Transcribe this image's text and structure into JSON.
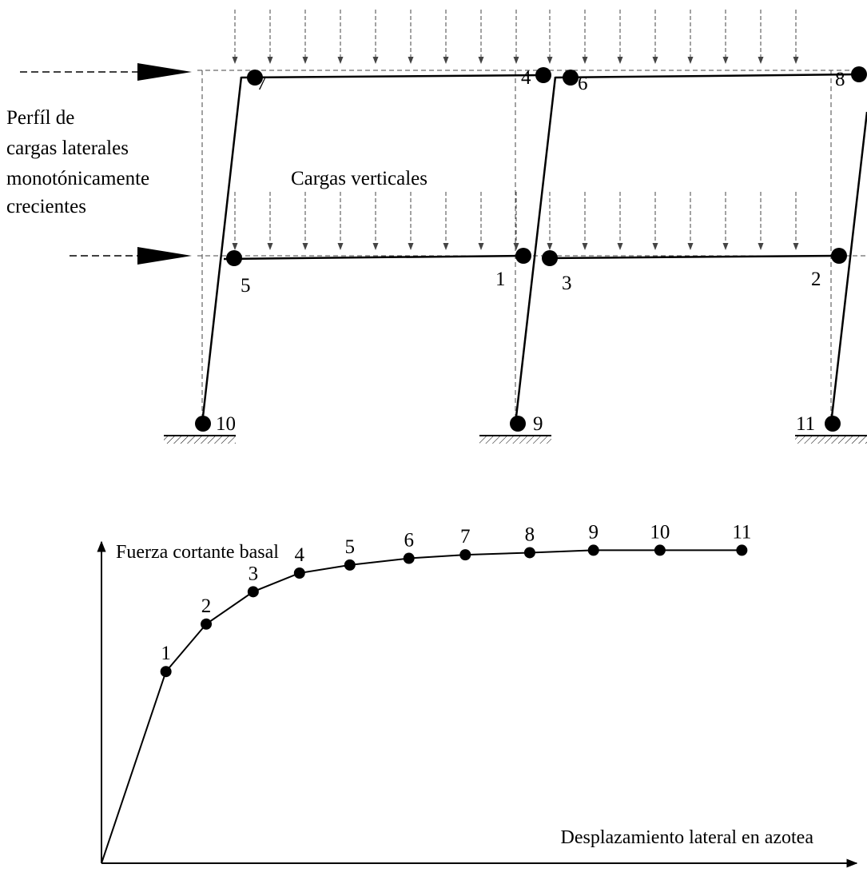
{
  "frame": {
    "lateral_load_label": [
      "Perfíl de",
      "cargas laterales",
      "monotónicamente",
      "crecientes"
    ],
    "vertical_load_label": "Cargas verticales",
    "hinge_labels": [
      "1",
      "2",
      "3",
      "4",
      "5",
      "6",
      "7",
      "8",
      "9",
      "10",
      "11"
    ]
  },
  "chart_data": {
    "type": "line",
    "xlabel": "Desplazamiento lateral en azotea",
    "ylabel": "Fuerza cortante basal",
    "xlim": [
      0,
      1
    ],
    "ylim": [
      0,
      1
    ],
    "points": [
      {
        "label": "",
        "x": 0.0,
        "y": 0.0
      },
      {
        "label": "1",
        "x": 0.096,
        "y": 0.545
      },
      {
        "label": "2",
        "x": 0.156,
        "y": 0.68
      },
      {
        "label": "3",
        "x": 0.226,
        "y": 0.772
      },
      {
        "label": "4",
        "x": 0.295,
        "y": 0.825
      },
      {
        "label": "5",
        "x": 0.37,
        "y": 0.848
      },
      {
        "label": "6",
        "x": 0.458,
        "y": 0.867
      },
      {
        "label": "7",
        "x": 0.542,
        "y": 0.877
      },
      {
        "label": "8",
        "x": 0.638,
        "y": 0.883
      },
      {
        "label": "9",
        "x": 0.733,
        "y": 0.89
      },
      {
        "label": "10",
        "x": 0.832,
        "y": 0.89
      },
      {
        "label": "11",
        "x": 0.954,
        "y": 0.89
      }
    ]
  }
}
